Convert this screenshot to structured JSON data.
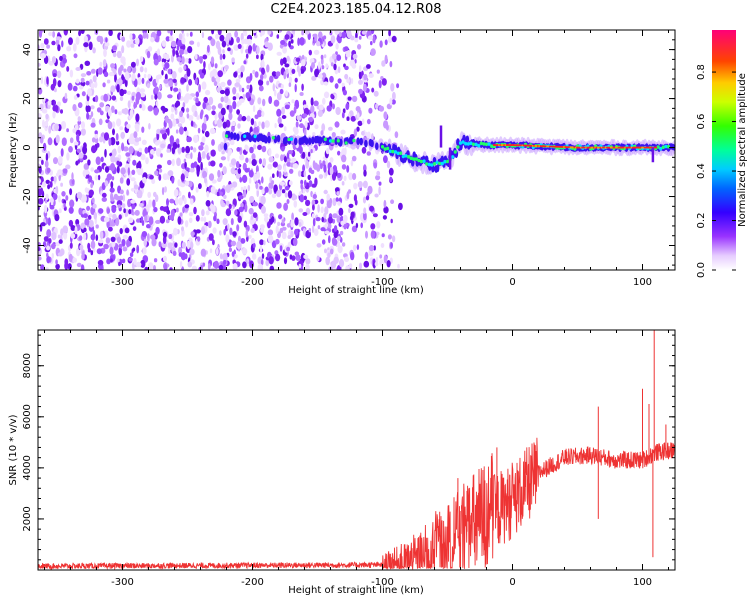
{
  "title": "C2E4.2023.185.04.12.R08",
  "chart_data": [
    {
      "type": "heatmap",
      "name": "spectrogram",
      "xlabel": "Height of straight line (km)",
      "ylabel": "Frequency (Hz)",
      "xlim": [
        -365,
        125
      ],
      "ylim": [
        -50,
        48
      ],
      "xticks": [
        -300,
        -200,
        -100,
        0,
        100
      ],
      "yticks": [
        -40,
        -20,
        0,
        20,
        40
      ],
      "colorbar": {
        "label": "Normalized spectral amplitude",
        "range": [
          0.0,
          0.97
        ],
        "ticks": [
          0.0,
          0.2,
          0.4,
          0.6,
          0.8
        ]
      },
      "noise_region_x": [
        -365,
        -85
      ],
      "signal_track": [
        {
          "x": -220,
          "y": 5
        },
        {
          "x": -175,
          "y": 3
        },
        {
          "x": -150,
          "y": 3
        },
        {
          "x": -110,
          "y": 2
        },
        {
          "x": -90,
          "y": -2
        },
        {
          "x": -75,
          "y": -5
        },
        {
          "x": -60,
          "y": -7
        },
        {
          "x": -48,
          "y": -5
        },
        {
          "x": -40,
          "y": 2
        },
        {
          "x": -20,
          "y": 1
        },
        {
          "x": 0,
          "y": 1
        },
        {
          "x": 50,
          "y": 0
        },
        {
          "x": 100,
          "y": 0
        },
        {
          "x": 125,
          "y": 0
        }
      ]
    },
    {
      "type": "line",
      "name": "snr",
      "xlabel": "Height of straight line (km)",
      "ylabel": "SNR (10 * v/v)",
      "xlim": [
        -365,
        125
      ],
      "ylim": [
        0,
        9400
      ],
      "xticks": [
        -300,
        -200,
        -100,
        0,
        100
      ],
      "yticks": [
        2000,
        4000,
        6000,
        8000
      ],
      "color": "#ee3333",
      "trend": [
        {
          "x": -365,
          "y": 150
        },
        {
          "x": -100,
          "y": 200
        },
        {
          "x": -80,
          "y": 300
        },
        {
          "x": -60,
          "y": 700
        },
        {
          "x": -40,
          "y": 1300
        },
        {
          "x": -20,
          "y": 2100
        },
        {
          "x": 0,
          "y": 2700
        },
        {
          "x": 20,
          "y": 3800
        },
        {
          "x": 40,
          "y": 4400
        },
        {
          "x": 60,
          "y": 4500
        },
        {
          "x": 80,
          "y": 4300
        },
        {
          "x": 100,
          "y": 4300
        },
        {
          "x": 110,
          "y": 4600
        },
        {
          "x": 125,
          "y": 4700
        }
      ],
      "spikes": [
        {
          "x": -42,
          "y": 3600
        },
        {
          "x": -35,
          "y": 3100
        },
        {
          "x": -12,
          "y": 4800
        },
        {
          "x": 10,
          "y": 3700
        },
        {
          "x": 66,
          "y": 6400
        },
        {
          "x": 66,
          "y": 2000
        },
        {
          "x": 100,
          "y": 7100
        },
        {
          "x": 105,
          "y": 6500
        },
        {
          "x": 109,
          "y": 9400
        },
        {
          "x": 108,
          "y": 500
        },
        {
          "x": 118,
          "y": 5700
        }
      ]
    }
  ]
}
